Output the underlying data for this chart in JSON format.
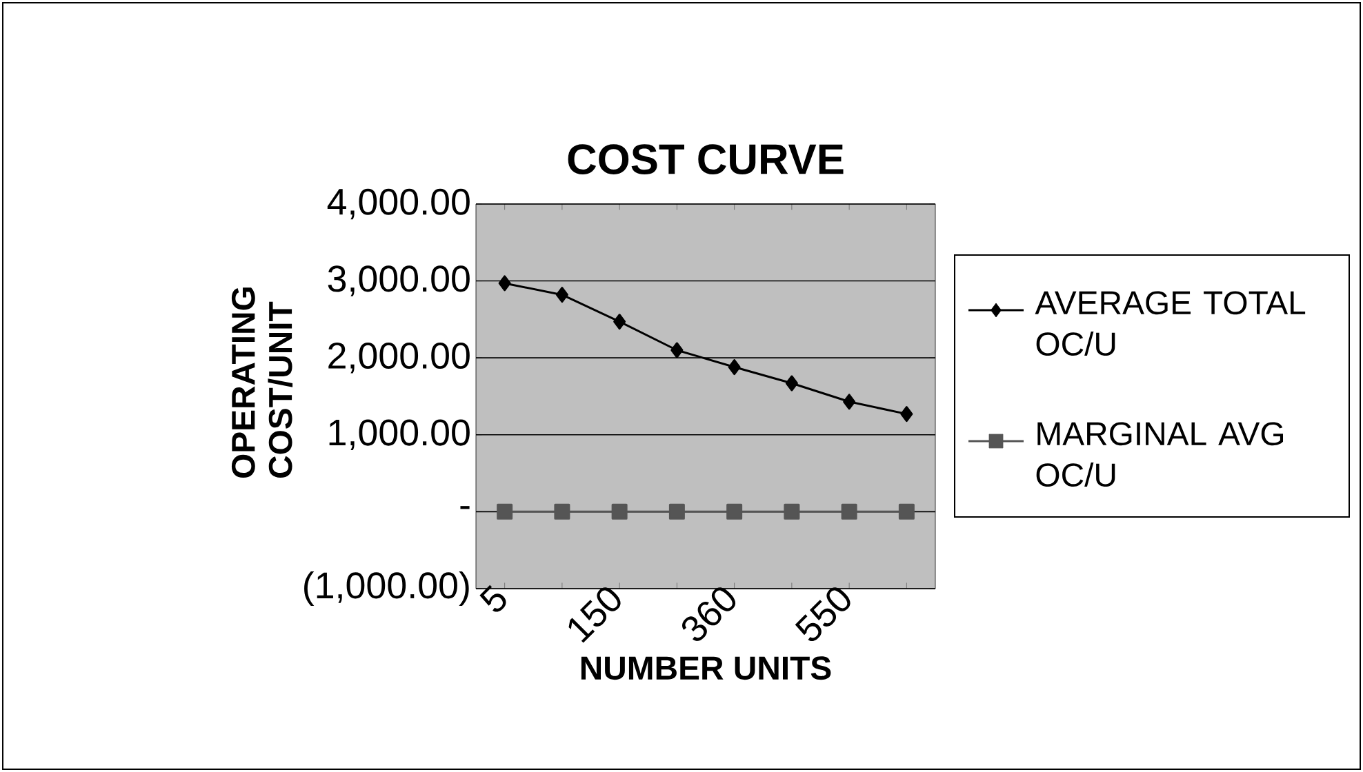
{
  "chart_data": {
    "type": "line",
    "title": "COST CURVE",
    "xlabel": "NUMBER UNITS",
    "ylabel": "OPERATING COST/UNIT",
    "categories": [
      "5",
      null,
      "150",
      null,
      "360",
      null,
      "550",
      null
    ],
    "series": [
      {
        "name": "AVERAGE TOTAL OC/U",
        "color": "#000000",
        "marker": "diamond",
        "values": [
          2970,
          2820,
          2470,
          2100,
          1880,
          1670,
          1430,
          1270
        ]
      },
      {
        "name": "MARGINAL AVG OC/U",
        "color": "#555555",
        "marker": "square",
        "values": [
          0,
          0,
          0,
          0,
          0,
          0,
          0,
          0
        ]
      }
    ],
    "ylim": [
      -1000,
      4000
    ],
    "yticks": [
      {
        "value": -1000,
        "label": "(1,000.00)"
      },
      {
        "value": 0,
        "label": "-"
      },
      {
        "value": 1000,
        "label": "1,000.00"
      },
      {
        "value": 2000,
        "label": "2,000.00"
      },
      {
        "value": 3000,
        "label": "3,000.00"
      },
      {
        "value": 4000,
        "label": "4,000.00"
      }
    ],
    "grid": "y",
    "legend": "right",
    "line_style": "solid"
  }
}
